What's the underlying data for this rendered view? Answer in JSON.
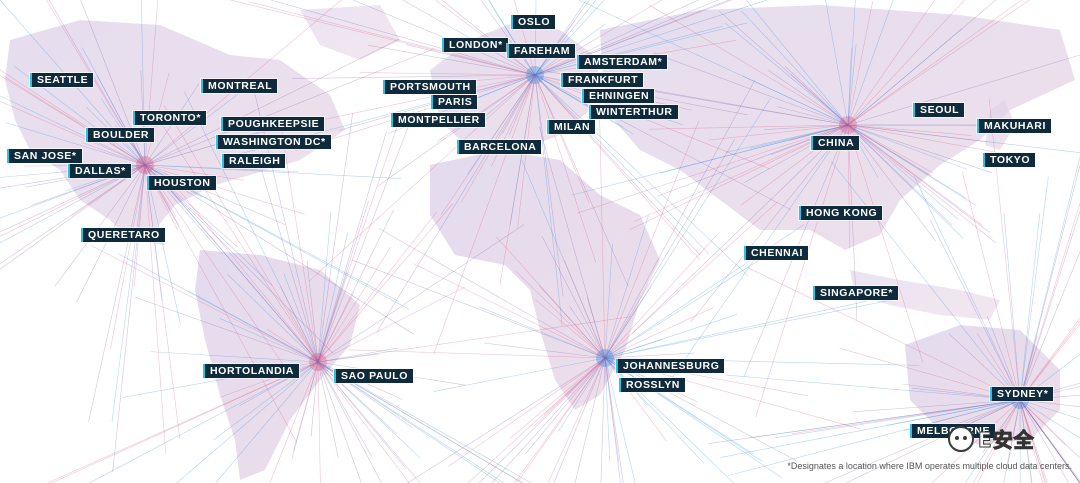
{
  "map": {
    "colors": {
      "hub_blue": "#2f86e0",
      "hub_pink": "#e0507e",
      "line_purple": "#7d5aa8",
      "label_bg": "#0f2a3a",
      "label_text": "#ffffff"
    },
    "hubs": [
      "DALLAS*",
      "AMSTERDAM*",
      "CHINA",
      "JOHANNESBURG",
      "SAO PAULO",
      "SYDNEY*"
    ],
    "locations": [
      {
        "name": "OSLO"
      },
      {
        "name": "LONDON*"
      },
      {
        "name": "FAREHAM"
      },
      {
        "name": "AMSTERDAM*"
      },
      {
        "name": "FRANKFURT"
      },
      {
        "name": "PORTSMOUTH"
      },
      {
        "name": "EHNINGEN"
      },
      {
        "name": "PARIS"
      },
      {
        "name": "WINTERTHUR"
      },
      {
        "name": "MONTPELLIER"
      },
      {
        "name": "MILAN"
      },
      {
        "name": "BARCELONA"
      },
      {
        "name": "SEATTLE"
      },
      {
        "name": "MONTREAL"
      },
      {
        "name": "TORONTO*"
      },
      {
        "name": "POUGHKEEPSIE"
      },
      {
        "name": "BOULDER"
      },
      {
        "name": "WASHINGTON DC*"
      },
      {
        "name": "SAN JOSE*"
      },
      {
        "name": "RALEIGH"
      },
      {
        "name": "DALLAS*"
      },
      {
        "name": "HOUSTON"
      },
      {
        "name": "QUERETARO"
      },
      {
        "name": "SEOUL"
      },
      {
        "name": "MAKUHARI"
      },
      {
        "name": "CHINA"
      },
      {
        "name": "TOKYO"
      },
      {
        "name": "HONG KONG"
      },
      {
        "name": "CHENNAI"
      },
      {
        "name": "SINGAPORE*"
      },
      {
        "name": "HORTOLANDIA"
      },
      {
        "name": "SAO PAULO"
      },
      {
        "name": "JOHANNESBURG"
      },
      {
        "name": "ROSSLYN"
      },
      {
        "name": "SYDNEY*"
      },
      {
        "name": "MELBOURNE"
      }
    ],
    "footnote": "*Designates a location where IBM operates multiple cloud data centers."
  },
  "watermark": {
    "text": "E安全",
    "icon": "wechat-logo-icon"
  }
}
